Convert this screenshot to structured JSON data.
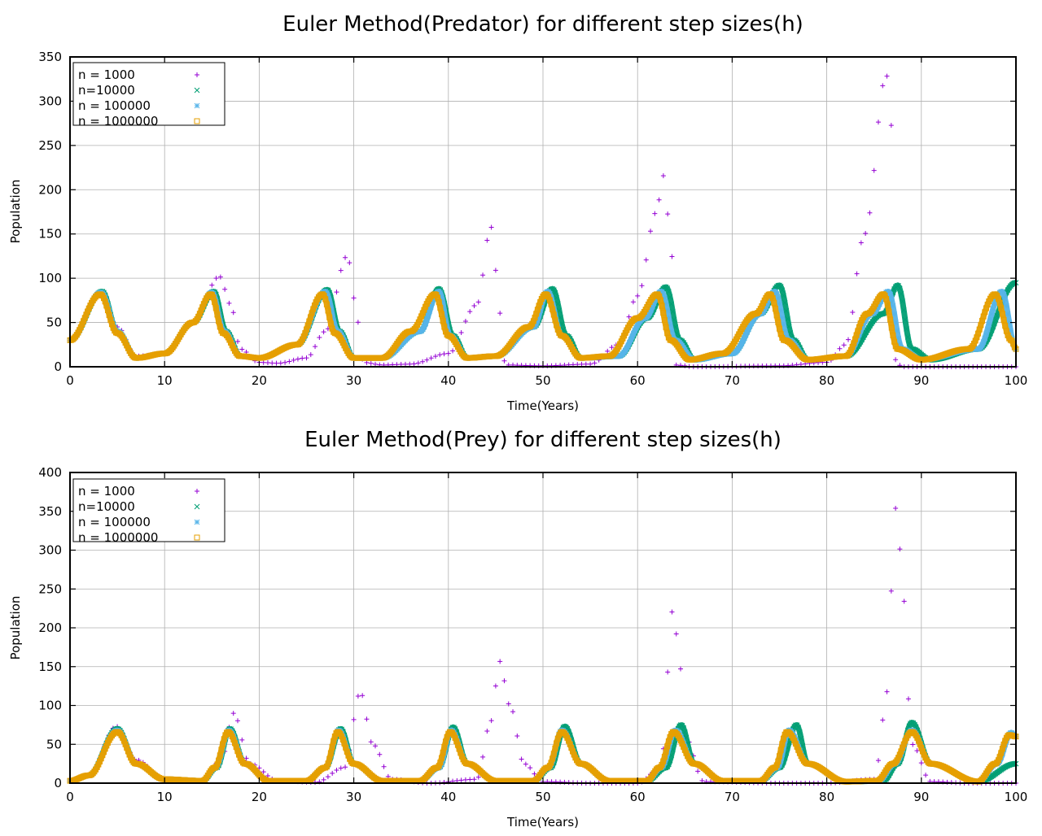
{
  "colors": {
    "n1000": "#9400d3",
    "n10000": "#009e73",
    "n100000": "#56b4e9",
    "n1000000": "#e69f00"
  },
  "chart_data": [
    {
      "type": "scatter",
      "title": "Euler Method(Predator) for different step sizes(h)",
      "xlabel": "Time(Years)",
      "ylabel": "Population",
      "xlim": [
        0,
        100
      ],
      "ylim": [
        0,
        350
      ],
      "xticks": [
        0,
        10,
        20,
        30,
        40,
        50,
        60,
        70,
        80,
        90,
        100
      ],
      "yticks": [
        0,
        50,
        100,
        150,
        200,
        250,
        300,
        350
      ],
      "grid": true,
      "legend_position": "top-left",
      "series": [
        {
          "name": "n = 1000",
          "marker": "plus",
          "color": "#9400d3",
          "x": [
            0,
            3.2,
            5,
            7,
            10,
            13,
            15.8,
            17,
            18,
            20,
            22,
            25,
            27,
            29.3,
            30.5,
            31,
            33,
            36,
            40,
            43,
            44.5,
            45.5,
            46,
            50,
            55,
            58,
            60,
            62,
            62.7,
            63.5,
            64,
            66,
            75,
            80,
            82,
            84,
            86.3,
            86.9,
            87.3,
            88,
            95,
            100
          ],
          "y": [
            30,
            85,
            45,
            12,
            15,
            50,
            102,
            70,
            20,
            5,
            4,
            10,
            40,
            125,
            50,
            5,
            2,
            3,
            15,
            70,
            158,
            60,
            2,
            1,
            3,
            25,
            80,
            175,
            216,
            150,
            2,
            0,
            1,
            5,
            25,
            150,
            330,
            270,
            5,
            0,
            0,
            0
          ]
        },
        {
          "name": "n=10000",
          "marker": "x",
          "color": "#009e73",
          "x": [
            0,
            3.4,
            5,
            7,
            10,
            13,
            15.2,
            16.5,
            18,
            20,
            24,
            27.2,
            28.5,
            30,
            33,
            37,
            39,
            40.5,
            42,
            45,
            49,
            51,
            52.5,
            54,
            58,
            61,
            63,
            64.5,
            66,
            70,
            73,
            75,
            76.5,
            78,
            82,
            86,
            87.5,
            89,
            91,
            96,
            100
          ],
          "y": [
            30,
            85,
            40,
            10,
            15,
            50,
            85,
            40,
            12,
            10,
            25,
            87,
            40,
            10,
            10,
            40,
            88,
            35,
            10,
            12,
            45,
            88,
            35,
            10,
            12,
            55,
            90,
            30,
            8,
            15,
            60,
            92,
            30,
            8,
            12,
            60,
            92,
            20,
            8,
            20,
            95
          ]
        },
        {
          "name": "n = 100000",
          "marker": "star",
          "color": "#56b4e9",
          "x": [
            0,
            3.3,
            5,
            7,
            10,
            13,
            15,
            16.3,
            18,
            20,
            24,
            27,
            28.3,
            30,
            33,
            37,
            39,
            40.2,
            42,
            45,
            49,
            50.5,
            52,
            54,
            58,
            60.8,
            62.5,
            64,
            66,
            70,
            73,
            74.5,
            76,
            78,
            82,
            84.8,
            86.5,
            88,
            90,
            96,
            98.5,
            100
          ],
          "y": [
            30,
            84,
            40,
            10,
            15,
            50,
            84,
            40,
            12,
            10,
            25,
            85,
            40,
            10,
            10,
            40,
            85,
            35,
            10,
            12,
            45,
            85,
            35,
            10,
            12,
            55,
            85,
            30,
            8,
            15,
            60,
            85,
            30,
            8,
            12,
            60,
            85,
            20,
            8,
            20,
            85,
            20
          ]
        },
        {
          "name": "n = 1000000",
          "marker": "square",
          "color": "#e69f00",
          "x": [
            0,
            3.2,
            5,
            7,
            10,
            13,
            14.9,
            16.2,
            18,
            20,
            24,
            26.7,
            28,
            30,
            33,
            36,
            38.6,
            40,
            42,
            45,
            48.5,
            50.3,
            52,
            54,
            57,
            60,
            62.1,
            63.5,
            65.5,
            69,
            72.5,
            74,
            75.5,
            78,
            82,
            84.3,
            86,
            87.5,
            90,
            95,
            97.8,
            99.5,
            100
          ],
          "y": [
            30,
            82,
            38,
            10,
            15,
            50,
            82,
            38,
            12,
            10,
            25,
            82,
            38,
            10,
            10,
            40,
            82,
            35,
            10,
            12,
            45,
            82,
            35,
            10,
            12,
            55,
            82,
            30,
            8,
            15,
            60,
            82,
            30,
            8,
            12,
            60,
            82,
            20,
            8,
            20,
            82,
            30,
            20
          ]
        }
      ]
    },
    {
      "type": "scatter",
      "title": "Euler Method(Prey) for different step sizes(h)",
      "xlabel": "Time(Years)",
      "ylabel": "Population",
      "xlim": [
        0,
        100
      ],
      "ylim": [
        0,
        400
      ],
      "xticks": [
        0,
        10,
        20,
        30,
        40,
        50,
        60,
        70,
        80,
        90,
        100
      ],
      "yticks": [
        0,
        50,
        100,
        150,
        200,
        250,
        300,
        350,
        400
      ],
      "grid": true,
      "legend_position": "top-left",
      "series": [
        {
          "name": "n = 1000",
          "marker": "plus",
          "color": "#9400d3",
          "x": [
            0,
            2,
            4.9,
            7,
            10,
            14,
            16,
            17.3,
            19,
            22,
            26,
            29,
            30.7,
            32,
            34,
            38,
            43,
            44.5,
            45.4,
            46.5,
            48,
            50,
            55,
            60,
            62.5,
            63.3,
            63.7,
            64.3,
            65,
            67,
            75,
            80,
            85,
            86.5,
            87,
            87.4,
            88,
            89,
            91,
            95,
            100
          ],
          "y": [
            3,
            10,
            73,
            30,
            5,
            3,
            30,
            90,
            25,
            3,
            1,
            20,
            117,
            50,
            5,
            0,
            5,
            80,
            157,
            100,
            25,
            2,
            0,
            0,
            20,
            150,
            225,
            180,
            60,
            2,
            0,
            0,
            5,
            120,
            300,
            370,
            250,
            50,
            2,
            0,
            0
          ]
        },
        {
          "name": "n=10000",
          "marker": "x",
          "color": "#009e73",
          "x": [
            0,
            2,
            5,
            7,
            10,
            14,
            15.5,
            16.9,
            18.5,
            21,
            25,
            27,
            28.6,
            30,
            33,
            37,
            39,
            40.5,
            42,
            45,
            49,
            50.8,
            52.3,
            54,
            57,
            61,
            63,
            64.6,
            66,
            69,
            73,
            75,
            76.8,
            78,
            82,
            86,
            87.5,
            89,
            91,
            96,
            100
          ],
          "y": [
            3,
            10,
            70,
            25,
            5,
            3,
            20,
            70,
            25,
            3,
            3,
            20,
            70,
            25,
            3,
            3,
            20,
            72,
            25,
            3,
            3,
            20,
            73,
            25,
            3,
            3,
            20,
            75,
            25,
            3,
            3,
            20,
            75,
            25,
            2,
            3,
            25,
            78,
            25,
            2,
            25
          ]
        },
        {
          "name": "n = 100000",
          "marker": "star",
          "color": "#56b4e9",
          "x": [
            0,
            2,
            5,
            7,
            10,
            14,
            15.4,
            16.8,
            18.5,
            21,
            25,
            27,
            28.4,
            30,
            33,
            37,
            39,
            40.3,
            42,
            45,
            49,
            50.6,
            52,
            54,
            57,
            61,
            62.5,
            64,
            66,
            69,
            73,
            74.8,
            76,
            78,
            82,
            85.5,
            87.2,
            89,
            91,
            96,
            98,
            99.5,
            100
          ],
          "y": [
            3,
            10,
            68,
            25,
            5,
            3,
            20,
            68,
            25,
            3,
            3,
            20,
            68,
            25,
            3,
            3,
            20,
            68,
            25,
            3,
            3,
            20,
            68,
            25,
            3,
            3,
            20,
            68,
            25,
            3,
            3,
            20,
            68,
            25,
            2,
            3,
            25,
            68,
            25,
            2,
            25,
            65,
            60
          ]
        },
        {
          "name": "n = 1000000",
          "marker": "square",
          "color": "#e69f00",
          "x": [
            0,
            2,
            5,
            7,
            10,
            14,
            15.3,
            16.7,
            18.5,
            21,
            25,
            27,
            28.3,
            30,
            33,
            37,
            38.8,
            40.2,
            42,
            45,
            49,
            50.5,
            52,
            54,
            57,
            61,
            62.3,
            63.8,
            66,
            69,
            73,
            74.5,
            75.8,
            78,
            82,
            85.3,
            87,
            89,
            91,
            96,
            97.8,
            99.3,
            100
          ],
          "y": [
            3,
            10,
            66,
            25,
            5,
            3,
            20,
            66,
            25,
            3,
            3,
            20,
            66,
            25,
            3,
            3,
            20,
            66,
            25,
            3,
            3,
            20,
            66,
            25,
            3,
            3,
            20,
            66,
            25,
            3,
            3,
            20,
            66,
            25,
            2,
            3,
            25,
            66,
            25,
            2,
            25,
            62,
            60
          ]
        }
      ]
    }
  ]
}
